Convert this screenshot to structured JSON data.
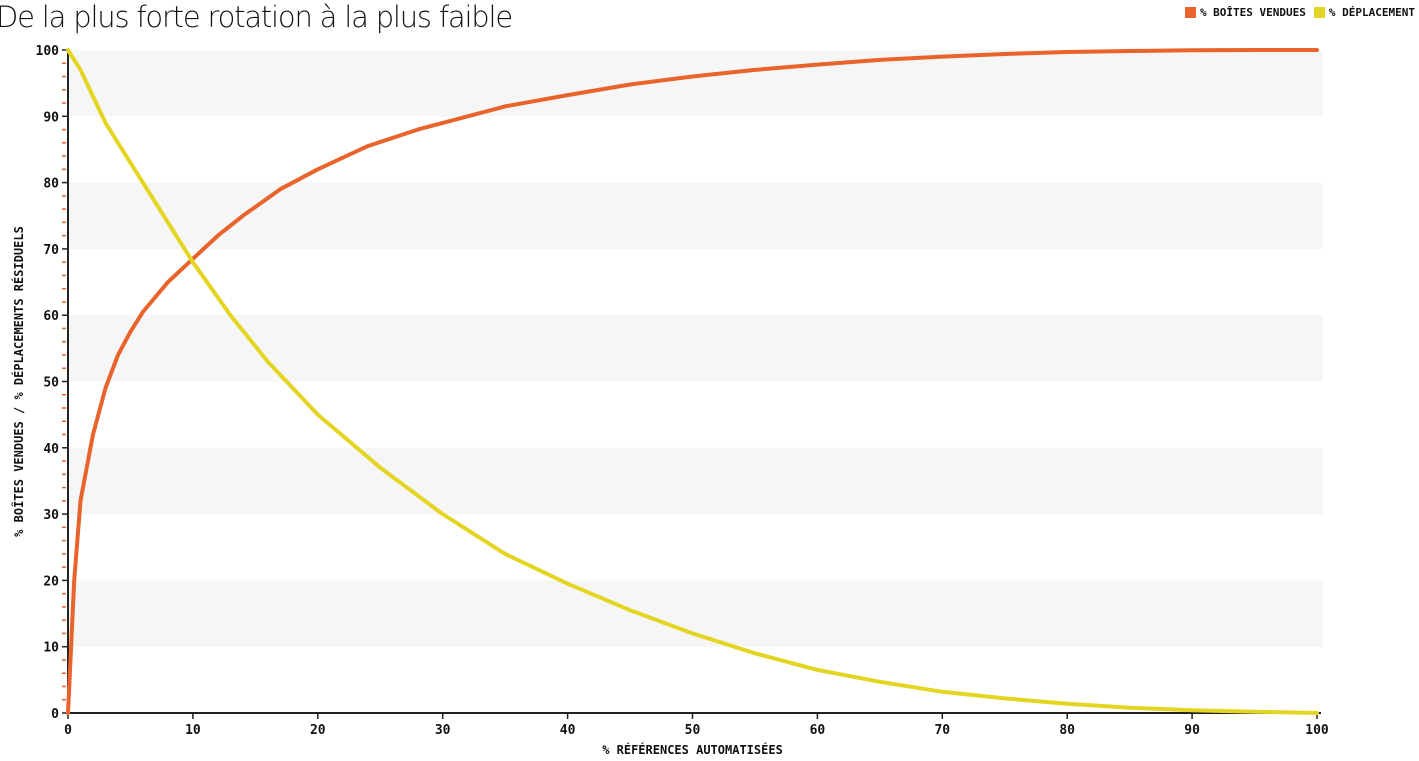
{
  "chart_data": {
    "type": "line",
    "title": "De la plus forte rotation à la plus faible",
    "xlabel": "% RÉFÉRENCES AUTOMATISÉES",
    "ylabel": "% BOÎTES VENDUES / % DÉPLACEMENTS RÉSIDUELS",
    "xlim": [
      0,
      100
    ],
    "ylim": [
      0,
      100
    ],
    "x_ticks": [
      "0",
      "10",
      "20",
      "30",
      "40",
      "50",
      "60",
      "70",
      "80",
      "90",
      "100"
    ],
    "y_ticks": [
      "0",
      "10",
      "20",
      "30",
      "40",
      "50",
      "60",
      "70",
      "80",
      "90",
      "100"
    ],
    "grid": "alternating horizontal bands",
    "legend_position": "top-right",
    "series": [
      {
        "name": "% BOÎTES VENDUES",
        "color": "#e8642c",
        "x": [
          0,
          0.5,
          1,
          2,
          3,
          4,
          5,
          6,
          8,
          10,
          12,
          14,
          17,
          20,
          24,
          28,
          30,
          35,
          40,
          45,
          50,
          55,
          60,
          65,
          70,
          75,
          80,
          85,
          90,
          95,
          100
        ],
        "y": [
          0,
          20,
          32,
          42,
          49,
          54,
          57.5,
          60.5,
          65,
          68.5,
          72,
          75,
          79,
          82,
          85.5,
          88,
          89,
          91.5,
          93.2,
          94.8,
          96,
          97,
          97.8,
          98.5,
          99,
          99.4,
          99.7,
          99.85,
          99.95,
          100,
          100
        ]
      },
      {
        "name": "% DÉPLACEMENT",
        "color": "#e3d521",
        "x": [
          0,
          1,
          2,
          3,
          5,
          7,
          10,
          13,
          16,
          20,
          25,
          30,
          35,
          40,
          45,
          50,
          55,
          60,
          65,
          70,
          75,
          80,
          85,
          90,
          95,
          100
        ],
        "y": [
          100,
          97,
          93,
          89,
          83,
          77,
          68,
          60,
          53,
          45,
          37,
          30,
          24,
          19.5,
          15.5,
          12,
          9,
          6.5,
          4.7,
          3.2,
          2.2,
          1.4,
          0.8,
          0.4,
          0.2,
          0
        ]
      }
    ]
  }
}
